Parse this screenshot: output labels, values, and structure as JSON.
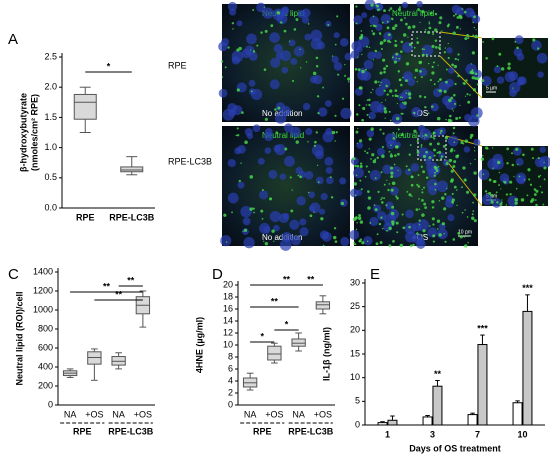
{
  "figure": {
    "panel_b": {
      "panel": "B",
      "rows": [
        "RPE",
        "RPE-LC3B"
      ],
      "stain": [
        "Neutral lipid",
        "Neutral lipid",
        "Neutral lipid",
        "Neutral lipid"
      ],
      "conditions": [
        "No addition",
        "+OS",
        "No addition",
        "+OS"
      ],
      "scale_bars": [
        "5 µm",
        "5 µm",
        "10 µm"
      ]
    }
  },
  "chart_data": [
    {
      "type": "box",
      "panel": "A",
      "ylabel": [
        "β-hydroxybutyrate",
        "(nmoles/cm² RPE)"
      ],
      "categories": [
        "RPE",
        "RPE-LC3B"
      ],
      "whisker_low": [
        1.25,
        0.55
      ],
      "q1": [
        1.47,
        0.6
      ],
      "median": [
        1.75,
        0.63
      ],
      "q3": [
        1.88,
        0.68
      ],
      "whisker_high": [
        2.0,
        0.85
      ],
      "color": "#d9d9d9",
      "ylim": [
        0,
        2.5
      ],
      "yticks": [
        {
          "value": 0,
          "label": "0.0"
        },
        0.5,
        {
          "value": 1,
          "label": "1.0"
        },
        1.5,
        {
          "value": 2,
          "label": "2.0"
        },
        2.5
      ],
      "significance": [
        "*"
      ]
    },
    {
      "type": "box",
      "panel": "C",
      "ylabel": [
        "Neutral lipid (ROI)/cell"
      ],
      "categories": [
        "NA",
        "+OS",
        "NA",
        "+OS"
      ],
      "groups": [
        "RPE",
        "RPE-LC3B"
      ],
      "whisker_low": [
        290,
        260,
        380,
        820
      ],
      "q1": [
        310,
        430,
        420,
        960
      ],
      "median": [
        335,
        500,
        460,
        1050
      ],
      "q3": [
        360,
        560,
        510,
        1140
      ],
      "whisker_high": [
        380,
        590,
        550,
        1200
      ],
      "color": "#d9d9d9",
      "ylim": [
        0,
        1400
      ],
      "yticks": [
        0,
        200,
        400,
        600,
        800,
        1000,
        1200,
        1400
      ],
      "significance": [
        "**",
        "**",
        "**"
      ]
    },
    {
      "type": "box",
      "panel": "D",
      "ylabel": [
        "4HNE (µg/ml)"
      ],
      "categories": [
        "NA",
        "+OS",
        "NA",
        "+OS"
      ],
      "groups": [
        "RPE",
        "RPE-LC3B"
      ],
      "whisker_low": [
        2.5,
        7,
        9,
        15.2
      ],
      "q1": [
        3,
        7.5,
        9.8,
        16
      ],
      "median": [
        3.7,
        8.5,
        10.3,
        16.7
      ],
      "q3": [
        4.5,
        9.8,
        11,
        17.2
      ],
      "whisker_high": [
        5.3,
        10.3,
        12,
        18.2
      ],
      "color": "#d9d9d9",
      "ylim": [
        0,
        20
      ],
      "yticks": [
        0,
        2,
        4,
        6,
        8,
        10,
        12,
        14,
        16,
        18,
        20
      ],
      "significance": [
        "*",
        "*",
        "**",
        "**",
        "**"
      ]
    },
    {
      "type": "bar",
      "panel": "E",
      "ylabel": [
        "IL-1β (ng/ml)"
      ],
      "xlabel": "Days of OS treatment",
      "categories": [
        "1",
        "3",
        "7",
        "10"
      ],
      "series": [
        {
          "color": "#ffffff",
          "values": [
            0.5,
            1.7,
            2.2,
            4.7
          ],
          "errors": [
            0.2,
            0.3,
            0.3,
            0.4
          ]
        },
        {
          "color": "#c8c8c8",
          "values": [
            1,
            8.2,
            17,
            24
          ],
          "errors": [
            0.9,
            1.2,
            2.0,
            3.5
          ]
        }
      ],
      "ylim": [
        0,
        30
      ],
      "yticks": [
        0,
        5,
        10,
        15,
        20,
        25,
        30
      ],
      "significance": [
        "**",
        "***",
        "***"
      ]
    }
  ]
}
